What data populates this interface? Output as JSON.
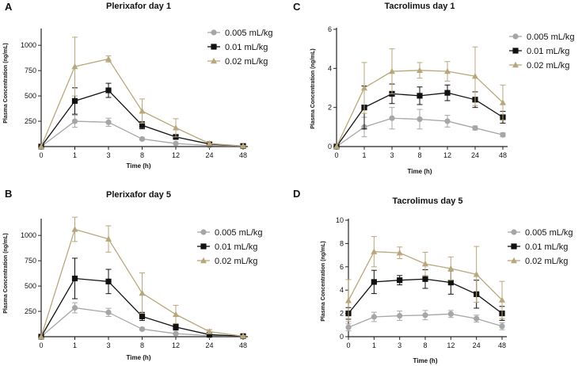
{
  "chart_data": [
    {
      "type": "line",
      "panel_label": "A",
      "title": "Plerixafor day 1",
      "xlabel": "Time (h)",
      "ylabel": "Plasma Concentration (ng/mL)",
      "categories": [
        "0",
        "1",
        "3",
        "8",
        "12",
        "24",
        "48"
      ],
      "yticks": [
        250,
        500,
        750,
        1000
      ],
      "ytick_labels": [
        "250",
        "500",
        "750",
        "1000"
      ],
      "ylim": [
        0,
        1150
      ],
      "series": [
        {
          "name": "0.005 mL/kg",
          "marker": "circle",
          "color": "#a6a6a6",
          "values": [
            0,
            250,
            240,
            75,
            30,
            10,
            5
          ],
          "errors": [
            0,
            60,
            40,
            10,
            5,
            3,
            2
          ]
        },
        {
          "name": "0.01 mL/kg",
          "marker": "square",
          "color": "#111111",
          "values": [
            0,
            450,
            555,
            210,
            95,
            25,
            5
          ],
          "errors": [
            0,
            130,
            70,
            35,
            20,
            10,
            3
          ]
        },
        {
          "name": "0.02 mL/kg",
          "marker": "triangle",
          "color": "#b8a77a",
          "values": [
            0,
            790,
            865,
            350,
            185,
            30,
            5
          ],
          "errors": [
            0,
            290,
            30,
            120,
            90,
            20,
            5
          ]
        }
      ]
    },
    {
      "type": "line",
      "panel_label": "C",
      "title": "Tacrolimus day 1",
      "xlabel": "Time (h)",
      "ylabel": "Plasma Concentration (ng/mL)",
      "categories": [
        "0",
        "1",
        "3",
        "8",
        "12",
        "24",
        "48"
      ],
      "yticks": [
        0,
        2,
        4,
        6
      ],
      "ytick_labels": [
        "0",
        "2",
        "4",
        "6"
      ],
      "ylim": [
        0,
        6
      ],
      "series": [
        {
          "name": "0.005 mL/kg",
          "marker": "circle",
          "color": "#a6a6a6",
          "values": [
            0,
            1.0,
            1.45,
            1.4,
            1.3,
            0.95,
            0.6
          ],
          "errors": [
            0,
            0.5,
            0.55,
            0.5,
            0.3,
            0.1,
            0.1
          ]
        },
        {
          "name": "0.01 mL/kg",
          "marker": "square",
          "color": "#111111",
          "values": [
            0,
            2.0,
            2.7,
            2.6,
            2.75,
            2.4,
            1.5
          ],
          "errors": [
            0,
            1.1,
            0.5,
            0.45,
            0.4,
            0.4,
            0.3
          ]
        },
        {
          "name": "0.02 mL/kg",
          "marker": "triangle",
          "color": "#b8a77a",
          "values": [
            0,
            3.0,
            3.85,
            3.9,
            3.85,
            3.6,
            2.25
          ],
          "errors": [
            0,
            1.3,
            1.15,
            0.4,
            0.5,
            1.5,
            0.9
          ]
        }
      ]
    },
    {
      "type": "line",
      "panel_label": "B",
      "title": "Plerixafor day 5",
      "xlabel": "Time (h)",
      "ylabel": "Plasma Concentration (ng/mL)",
      "categories": [
        "0",
        "1",
        "3",
        "8",
        "12",
        "24",
        "48"
      ],
      "yticks": [
        250,
        500,
        750,
        1000
      ],
      "ytick_labels": [
        "250",
        "500",
        "750",
        "1000"
      ],
      "ylim": [
        0,
        1150
      ],
      "series": [
        {
          "name": "0.005 mL/kg",
          "marker": "circle",
          "color": "#a6a6a6",
          "values": [
            0,
            285,
            240,
            75,
            30,
            10,
            5
          ],
          "errors": [
            0,
            50,
            40,
            10,
            5,
            3,
            2
          ]
        },
        {
          "name": "0.01 mL/kg",
          "marker": "square",
          "color": "#111111",
          "values": [
            0,
            575,
            545,
            200,
            95,
            20,
            5
          ],
          "errors": [
            0,
            200,
            120,
            40,
            30,
            10,
            3
          ]
        },
        {
          "name": "0.02 mL/kg",
          "marker": "triangle",
          "color": "#b8a77a",
          "values": [
            0,
            1060,
            965,
            430,
            220,
            50,
            5
          ],
          "errors": [
            0,
            120,
            130,
            200,
            90,
            20,
            5
          ]
        }
      ]
    },
    {
      "type": "line",
      "panel_label": "D",
      "title": "Tacrolimus day 5",
      "xlabel": "Time (h)",
      "ylabel": "Plasma Concentration (ng/mL)",
      "categories": [
        "0",
        "1",
        "3",
        "8",
        "12",
        "24",
        "48"
      ],
      "yticks": [
        0,
        2,
        4,
        6,
        8,
        10
      ],
      "ytick_labels": [
        "0",
        "2",
        "4",
        "6",
        "8",
        "10"
      ],
      "ylim": [
        0,
        10
      ],
      "series": [
        {
          "name": "0.005 mL/kg",
          "marker": "circle",
          "color": "#a6a6a6",
          "values": [
            0.8,
            1.7,
            1.8,
            1.85,
            1.95,
            1.55,
            0.9
          ],
          "errors": [
            0.3,
            0.4,
            0.4,
            0.4,
            0.3,
            0.3,
            0.3
          ]
        },
        {
          "name": "0.01 mL/kg",
          "marker": "square",
          "color": "#111111",
          "values": [
            2.0,
            4.7,
            4.85,
            4.95,
            4.65,
            3.65,
            2.0
          ],
          "errors": [
            0.5,
            1.0,
            0.4,
            0.8,
            1.0,
            1.2,
            0.6
          ]
        },
        {
          "name": "0.02 mL/kg",
          "marker": "triangle",
          "color": "#b8a77a",
          "values": [
            3.1,
            7.3,
            7.2,
            6.25,
            5.85,
            5.35,
            3.15
          ],
          "errors": [
            1.8,
            1.3,
            0.5,
            1.0,
            1.0,
            2.4,
            1.6
          ]
        }
      ]
    }
  ]
}
